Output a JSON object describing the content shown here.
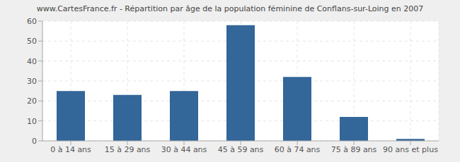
{
  "chart_data": {
    "type": "bar",
    "title": "www.CartesFrance.fr - Répartition par âge de la population féminine de Conflans-sur-Loing en 2007",
    "categories": [
      "0 à 14 ans",
      "15 à 29 ans",
      "30 à 44 ans",
      "45 à 59 ans",
      "60 à 74 ans",
      "75 à 89 ans",
      "90 ans et plus"
    ],
    "values": [
      25,
      23,
      25,
      58,
      32,
      12,
      1
    ],
    "color": "#336699",
    "ylim": [
      0,
      60
    ],
    "yticks": [
      0,
      10,
      20,
      30,
      40,
      50,
      60
    ],
    "grid": true
  }
}
